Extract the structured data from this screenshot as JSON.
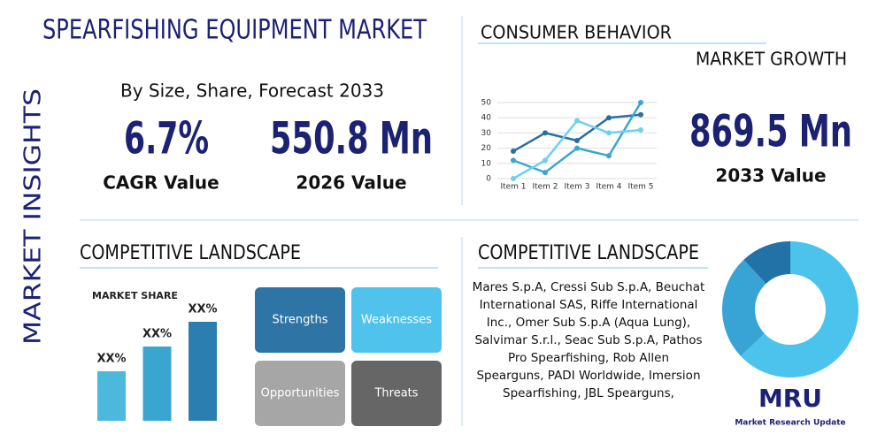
{
  "side_label": "MARKET INSIGHTS",
  "title": "SPEARFISHING EQUIPMENT MARKET",
  "subtitle": "By Size, Share, Forecast 2033",
  "stats": [
    {
      "value": "6.7%",
      "label": "CAGR Value"
    },
    {
      "value": "550.8 Mn",
      "label": "2026 Value"
    },
    {
      "value": "869.5 Mn",
      "label": "2033 Value"
    }
  ],
  "consumer_heading": "CONSUMER BEHAVIOR",
  "growth_heading": "MARKET GROWTH",
  "competitive_heading_left": "COMPETITIVE LANDSCAPE",
  "competitive_heading_right": "COMPETITIVE LANDSCAPE",
  "swot": [
    "Strengths",
    "Weaknesses",
    "Opportunities",
    "Threats"
  ],
  "companies": [
    "Mares S.p.A, Cressi Sub S.p.A, Beuchat",
    "International SAS, Riffe International",
    "Inc., Omer Sub S.p.A (Aqua Lung),",
    "Salvimar S.r.l., Seac Sub S.p.A, Pathos",
    "Pro Spearfishing, Rob Allen",
    "Spearguns, PADI Worldwide, Imersion",
    "Spearfishing, JBL Spearguns,"
  ],
  "logo": {
    "mark": "MRU",
    "name": "Market Research Update"
  },
  "chart_data": [
    {
      "type": "line",
      "categories": [
        "Item 1",
        "Item 2",
        "Item 3",
        "Item 4",
        "Item 5"
      ],
      "series": [
        {
          "color": "#2a6f9e",
          "values": [
            18,
            30,
            25,
            40,
            42
          ]
        },
        {
          "color": "#3aa6cf",
          "values": [
            12,
            4,
            20,
            15,
            50
          ]
        },
        {
          "color": "#6fd0ee",
          "values": [
            0,
            12,
            38,
            30,
            32
          ]
        }
      ],
      "ylim": [
        0,
        50
      ],
      "yticks": [
        0,
        10,
        20,
        30,
        40,
        50
      ],
      "grid": true
    },
    {
      "type": "bar",
      "title": "MARKET SHARE",
      "values": [
        2,
        3,
        4
      ],
      "value_labels": [
        "XX%",
        "XX%",
        "XX%"
      ],
      "colors": [
        "#4cb8dc",
        "#3aa6cf",
        "#2a7fb0"
      ]
    },
    {
      "type": "pie",
      "values": [
        63,
        25,
        12
      ],
      "colors": [
        "#4cc3ec",
        "#38a4d6",
        "#2272a8"
      ]
    }
  ]
}
